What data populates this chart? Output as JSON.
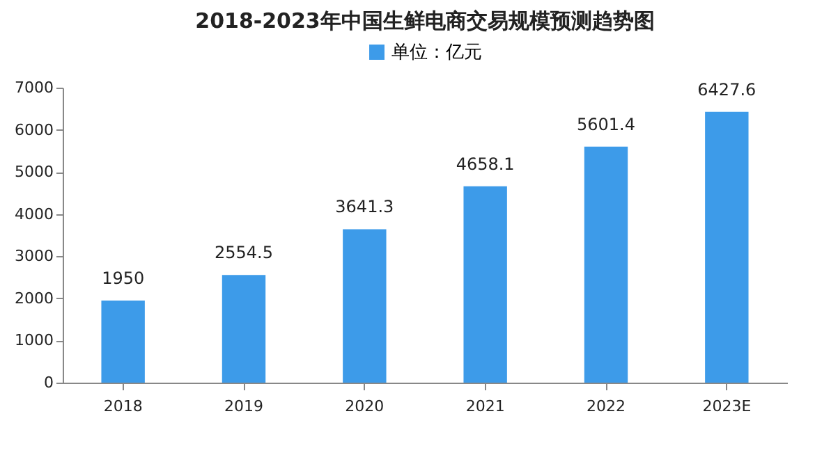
{
  "chart_data": {
    "type": "bar",
    "title": "2018-2023年中国生鲜电商交易规模预测趋势图",
    "categories": [
      "2018",
      "2019",
      "2020",
      "2021",
      "2022",
      "2023E"
    ],
    "series": [
      {
        "name": "单位：亿元",
        "color": "#3d9be9",
        "values": [
          1950,
          2554.5,
          3641.3,
          4658.1,
          5601.4,
          6427.6
        ]
      }
    ],
    "ylim": [
      0,
      7000
    ],
    "yticks": [
      0,
      1000,
      2000,
      3000,
      4000,
      5000,
      6000,
      7000
    ],
    "data_labels": true,
    "legend": "top",
    "grid": false
  }
}
